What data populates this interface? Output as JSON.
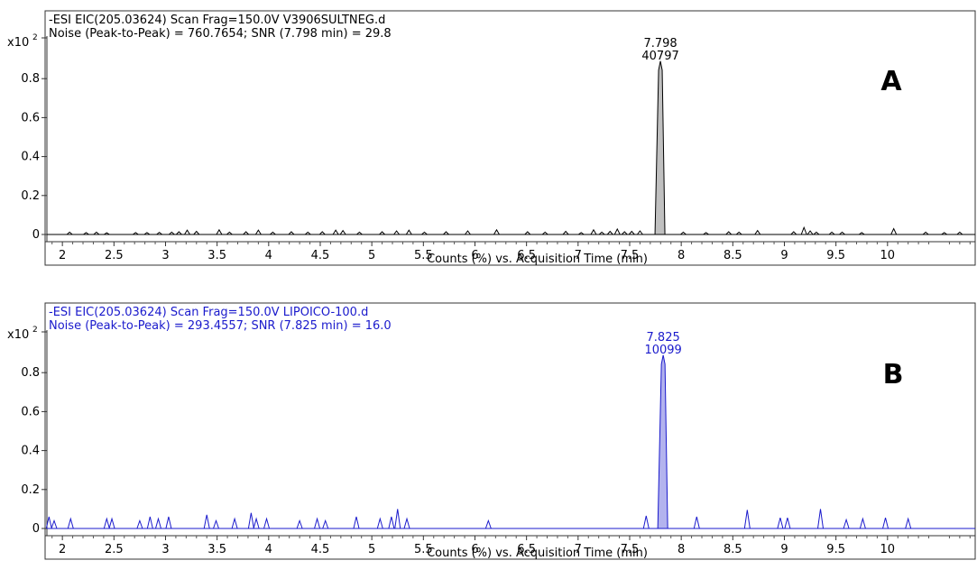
{
  "chart_data": [
    {
      "type": "line",
      "panel_label": "A",
      "color": "#000000",
      "fill_color": "#c0c0c0",
      "header_line1": "-ESI EIC(205.03624) Scan Frag=150.0V V3906SULTNEG.d",
      "header_line2": "Noise (Peak-to-Peak) = 760.7654; SNR (7.798 min) = 29.8",
      "y_scale_label": "x10",
      "y_scale_exp": "2",
      "xlabel": "Counts (%) vs. Acquisition Time (min)",
      "xlim": [
        1.85,
        10.85
      ],
      "ylim": [
        -0.02,
        1.0
      ],
      "x_ticks": [
        "2",
        "2.5",
        "3",
        "3.5",
        "4",
        "4.5",
        "5",
        "5.5",
        "6",
        "6.5",
        "7",
        "7.5",
        "8",
        "8.5",
        "9",
        "9.5",
        "10"
      ],
      "y_ticks": [
        "0",
        "0.2",
        "0.4",
        "0.6",
        "0.8"
      ],
      "peak": {
        "time": 7.798,
        "height": 0.89,
        "time_label": "7.798",
        "area_label": "40797"
      },
      "baseline_noise": [
        [
          2.07,
          0.012
        ],
        [
          2.23,
          0.01
        ],
        [
          2.33,
          0.012
        ],
        [
          2.43,
          0.009
        ],
        [
          2.71,
          0.01
        ],
        [
          2.82,
          0.01
        ],
        [
          2.94,
          0.011
        ],
        [
          3.06,
          0.012
        ],
        [
          3.13,
          0.014
        ],
        [
          3.21,
          0.022
        ],
        [
          3.3,
          0.016
        ],
        [
          3.52,
          0.024
        ],
        [
          3.62,
          0.012
        ],
        [
          3.78,
          0.014
        ],
        [
          3.9,
          0.022
        ],
        [
          4.04,
          0.012
        ],
        [
          4.22,
          0.014
        ],
        [
          4.38,
          0.012
        ],
        [
          4.52,
          0.014
        ],
        [
          4.65,
          0.022
        ],
        [
          4.72,
          0.02
        ],
        [
          4.88,
          0.012
        ],
        [
          5.1,
          0.014
        ],
        [
          5.24,
          0.018
        ],
        [
          5.36,
          0.022
        ],
        [
          5.51,
          0.012
        ],
        [
          5.72,
          0.014
        ],
        [
          5.93,
          0.018
        ],
        [
          6.21,
          0.024
        ],
        [
          6.51,
          0.014
        ],
        [
          6.68,
          0.012
        ],
        [
          6.88,
          0.016
        ],
        [
          7.03,
          0.01
        ],
        [
          7.15,
          0.024
        ],
        [
          7.23,
          0.012
        ],
        [
          7.31,
          0.016
        ],
        [
          7.38,
          0.028
        ],
        [
          7.45,
          0.014
        ],
        [
          7.52,
          0.016
        ],
        [
          7.6,
          0.018
        ],
        [
          8.02,
          0.012
        ],
        [
          8.24,
          0.01
        ],
        [
          8.46,
          0.014
        ],
        [
          8.56,
          0.012
        ],
        [
          8.74,
          0.02
        ],
        [
          9.09,
          0.014
        ],
        [
          9.19,
          0.036
        ],
        [
          9.25,
          0.018
        ],
        [
          9.31,
          0.012
        ],
        [
          9.46,
          0.012
        ],
        [
          9.56,
          0.012
        ],
        [
          9.75,
          0.01
        ],
        [
          10.06,
          0.03
        ],
        [
          10.37,
          0.012
        ],
        [
          10.55,
          0.01
        ],
        [
          10.7,
          0.012
        ]
      ]
    },
    {
      "type": "line",
      "panel_label": "B",
      "color": "#1a1acc",
      "fill_color": "#b3b3ee",
      "header_line1": "-ESI EIC(205.03624) Scan Frag=150.0V LIPOICO-100.d",
      "header_line2": "Noise (Peak-to-Peak) = 293.4557; SNR (7.825 min) = 16.0",
      "y_scale_label": "x10",
      "y_scale_exp": "2",
      "xlabel": "Counts (%) vs. Acquisition Time (min)",
      "xlim": [
        1.85,
        10.85
      ],
      "ylim": [
        -0.02,
        1.0
      ],
      "x_ticks": [
        "2",
        "2.5",
        "3",
        "3.5",
        "4",
        "4.5",
        "5",
        "5.5",
        "6",
        "6.5",
        "7",
        "7.5",
        "8",
        "8.5",
        "9",
        "9.5",
        "10"
      ],
      "y_ticks": [
        "0",
        "0.2",
        "0.4",
        "0.6",
        "0.8"
      ],
      "peak": {
        "time": 7.825,
        "height": 0.89,
        "time_label": "7.825",
        "area_label": "10099"
      },
      "baseline_noise": [
        [
          1.87,
          0.06
        ],
        [
          1.92,
          0.04
        ],
        [
          2.08,
          0.05
        ],
        [
          2.43,
          0.05
        ],
        [
          2.48,
          0.05
        ],
        [
          2.75,
          0.04
        ],
        [
          2.85,
          0.06
        ],
        [
          2.93,
          0.05
        ],
        [
          3.03,
          0.06
        ],
        [
          3.4,
          0.07
        ],
        [
          3.49,
          0.04
        ],
        [
          3.67,
          0.05
        ],
        [
          3.83,
          0.08
        ],
        [
          3.88,
          0.05
        ],
        [
          3.98,
          0.05
        ],
        [
          4.3,
          0.04
        ],
        [
          4.47,
          0.05
        ],
        [
          4.55,
          0.04
        ],
        [
          4.85,
          0.06
        ],
        [
          5.08,
          0.05
        ],
        [
          5.19,
          0.06
        ],
        [
          5.25,
          0.1
        ],
        [
          5.34,
          0.05
        ],
        [
          6.13,
          0.04
        ],
        [
          7.66,
          0.065
        ],
        [
          8.15,
          0.06
        ],
        [
          8.64,
          0.095
        ],
        [
          8.96,
          0.055
        ],
        [
          9.03,
          0.055
        ],
        [
          9.35,
          0.1
        ],
        [
          9.6,
          0.045
        ],
        [
          9.76,
          0.05
        ],
        [
          9.98,
          0.055
        ],
        [
          10.2,
          0.05
        ]
      ]
    }
  ]
}
